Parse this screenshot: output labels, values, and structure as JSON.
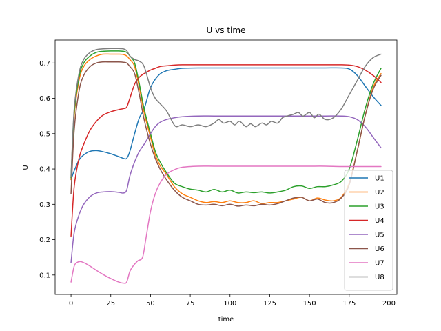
{
  "chart_data": {
    "type": "line",
    "title": "U vs time",
    "xlabel": "time",
    "ylabel": "U",
    "xlim": [
      -10,
      205
    ],
    "ylim": [
      0.045,
      0.765
    ],
    "xticks": [
      0,
      25,
      50,
      75,
      100,
      125,
      150,
      175,
      200
    ],
    "yticks": [
      0.1,
      0.2,
      0.3,
      0.4,
      0.5,
      0.6,
      0.7
    ],
    "grid": false,
    "legend_position": "lower-right",
    "series": [
      {
        "name": "U1",
        "color": "#1f77b4",
        "x": [
          0,
          2,
          5,
          8,
          12,
          16,
          20,
          25,
          30,
          33,
          35,
          37,
          40,
          43,
          46,
          50,
          55,
          60,
          65,
          70,
          80,
          90,
          100,
          110,
          120,
          130,
          140,
          150,
          160,
          170,
          175,
          180,
          185,
          190,
          195
        ],
        "y": [
          0.37,
          0.395,
          0.425,
          0.44,
          0.45,
          0.452,
          0.449,
          0.443,
          0.435,
          0.43,
          0.43,
          0.45,
          0.5,
          0.545,
          0.57,
          0.63,
          0.665,
          0.678,
          0.682,
          0.685,
          0.686,
          0.686,
          0.686,
          0.686,
          0.686,
          0.686,
          0.686,
          0.686,
          0.686,
          0.686,
          0.683,
          0.665,
          0.635,
          0.605,
          0.58
        ]
      },
      {
        "name": "U2",
        "color": "#ff7f0e",
        "x": [
          0,
          2,
          5,
          8,
          12,
          16,
          20,
          25,
          30,
          33,
          35,
          37,
          40,
          43,
          46,
          50,
          53,
          56,
          60,
          65,
          70,
          75,
          80,
          85,
          90,
          95,
          100,
          105,
          110,
          115,
          120,
          125,
          130,
          135,
          140,
          145,
          150,
          155,
          160,
          165,
          170,
          175,
          180,
          185,
          190,
          195
        ],
        "y": [
          0.37,
          0.55,
          0.65,
          0.69,
          0.71,
          0.72,
          0.725,
          0.725,
          0.725,
          0.724,
          0.72,
          0.71,
          0.69,
          0.63,
          0.56,
          0.49,
          0.44,
          0.41,
          0.385,
          0.35,
          0.33,
          0.32,
          0.31,
          0.305,
          0.308,
          0.305,
          0.31,
          0.305,
          0.305,
          0.31,
          0.302,
          0.305,
          0.305,
          0.31,
          0.315,
          0.32,
          0.31,
          0.318,
          0.312,
          0.31,
          0.32,
          0.36,
          0.45,
          0.55,
          0.63,
          0.67
        ]
      },
      {
        "name": "U3",
        "color": "#2ca02c",
        "x": [
          0,
          2,
          5,
          8,
          12,
          16,
          20,
          25,
          30,
          33,
          35,
          37,
          40,
          43,
          46,
          50,
          53,
          56,
          60,
          65,
          70,
          75,
          80,
          85,
          90,
          95,
          100,
          105,
          110,
          115,
          120,
          125,
          130,
          135,
          140,
          145,
          150,
          155,
          160,
          165,
          170,
          175,
          180,
          185,
          190,
          195
        ],
        "y": [
          0.375,
          0.56,
          0.66,
          0.7,
          0.72,
          0.73,
          0.733,
          0.734,
          0.734,
          0.733,
          0.73,
          0.72,
          0.7,
          0.64,
          0.57,
          0.5,
          0.45,
          0.42,
          0.39,
          0.36,
          0.35,
          0.343,
          0.34,
          0.335,
          0.342,
          0.335,
          0.34,
          0.332,
          0.335,
          0.333,
          0.335,
          0.332,
          0.335,
          0.34,
          0.35,
          0.352,
          0.345,
          0.35,
          0.35,
          0.355,
          0.365,
          0.4,
          0.48,
          0.57,
          0.64,
          0.685
        ]
      },
      {
        "name": "U4",
        "color": "#d62728",
        "x": [
          0,
          2,
          5,
          8,
          12,
          16,
          20,
          25,
          30,
          33,
          35,
          37,
          40,
          43,
          46,
          50,
          53,
          56,
          60,
          65,
          70,
          80,
          90,
          100,
          110,
          120,
          130,
          140,
          150,
          160,
          170,
          175,
          180,
          185,
          190,
          195
        ],
        "y": [
          0.21,
          0.35,
          0.43,
          0.47,
          0.51,
          0.535,
          0.552,
          0.562,
          0.568,
          0.571,
          0.575,
          0.6,
          0.64,
          0.66,
          0.67,
          0.68,
          0.685,
          0.69,
          0.692,
          0.694,
          0.695,
          0.695,
          0.695,
          0.695,
          0.695,
          0.695,
          0.695,
          0.695,
          0.695,
          0.695,
          0.695,
          0.694,
          0.69,
          0.68,
          0.665,
          0.645
        ]
      },
      {
        "name": "U5",
        "color": "#9467bd",
        "x": [
          0,
          2,
          5,
          8,
          12,
          16,
          20,
          25,
          30,
          33,
          35,
          37,
          40,
          43,
          46,
          50,
          53,
          56,
          60,
          65,
          70,
          80,
          90,
          100,
          110,
          120,
          130,
          140,
          150,
          160,
          170,
          175,
          180,
          185,
          190,
          195
        ],
        "y": [
          0.135,
          0.22,
          0.27,
          0.3,
          0.322,
          0.332,
          0.335,
          0.336,
          0.334,
          0.332,
          0.34,
          0.38,
          0.42,
          0.45,
          0.47,
          0.5,
          0.52,
          0.532,
          0.54,
          0.545,
          0.548,
          0.55,
          0.55,
          0.55,
          0.55,
          0.55,
          0.55,
          0.55,
          0.55,
          0.55,
          0.55,
          0.548,
          0.54,
          0.52,
          0.49,
          0.46
        ]
      },
      {
        "name": "U6",
        "color": "#8c564b",
        "x": [
          0,
          2,
          5,
          8,
          12,
          16,
          20,
          25,
          30,
          33,
          35,
          37,
          40,
          43,
          46,
          50,
          53,
          56,
          60,
          65,
          70,
          75,
          80,
          85,
          90,
          95,
          100,
          105,
          110,
          115,
          120,
          125,
          130,
          135,
          140,
          145,
          150,
          155,
          160,
          165,
          170,
          175,
          180,
          185,
          190,
          195
        ],
        "y": [
          0.33,
          0.51,
          0.62,
          0.665,
          0.69,
          0.7,
          0.703,
          0.703,
          0.703,
          0.702,
          0.7,
          0.69,
          0.67,
          0.61,
          0.54,
          0.47,
          0.43,
          0.4,
          0.37,
          0.34,
          0.32,
          0.31,
          0.3,
          0.298,
          0.3,
          0.296,
          0.3,
          0.295,
          0.298,
          0.296,
          0.3,
          0.298,
          0.302,
          0.31,
          0.318,
          0.32,
          0.31,
          0.315,
          0.305,
          0.305,
          0.318,
          0.355,
          0.45,
          0.55,
          0.625,
          0.665
        ]
      },
      {
        "name": "U7",
        "color": "#e377c2",
        "x": [
          0,
          2,
          4,
          6,
          8,
          12,
          16,
          20,
          25,
          30,
          33,
          35,
          37,
          39,
          42,
          45,
          47,
          50,
          53,
          56,
          60,
          65,
          70,
          80,
          90,
          100,
          110,
          120,
          130,
          140,
          150,
          160,
          170,
          180,
          190,
          195
        ],
        "y": [
          0.08,
          0.125,
          0.136,
          0.138,
          0.135,
          0.125,
          0.113,
          0.102,
          0.09,
          0.08,
          0.077,
          0.08,
          0.11,
          0.125,
          0.14,
          0.15,
          0.2,
          0.28,
          0.33,
          0.36,
          0.385,
          0.398,
          0.405,
          0.408,
          0.408,
          0.408,
          0.408,
          0.408,
          0.408,
          0.408,
          0.408,
          0.408,
          0.407,
          0.407,
          0.407,
          0.407
        ]
      },
      {
        "name": "U8",
        "color": "#7f7f7f",
        "x": [
          0,
          2,
          5,
          8,
          12,
          16,
          20,
          25,
          30,
          33,
          35,
          37,
          40,
          43,
          46,
          50,
          53,
          56,
          60,
          63,
          66,
          70,
          75,
          80,
          85,
          90,
          93,
          96,
          100,
          103,
          106,
          110,
          113,
          116,
          120,
          123,
          126,
          130,
          133,
          136,
          140,
          143,
          146,
          150,
          153,
          156,
          160,
          165,
          170,
          175,
          180,
          185,
          190,
          195
        ],
        "y": [
          0.38,
          0.57,
          0.67,
          0.71,
          0.73,
          0.738,
          0.74,
          0.741,
          0.741,
          0.74,
          0.735,
          0.72,
          0.71,
          0.705,
          0.69,
          0.63,
          0.6,
          0.585,
          0.565,
          0.54,
          0.52,
          0.525,
          0.52,
          0.525,
          0.52,
          0.53,
          0.54,
          0.53,
          0.535,
          0.525,
          0.535,
          0.52,
          0.528,
          0.52,
          0.53,
          0.525,
          0.535,
          0.53,
          0.545,
          0.55,
          0.555,
          0.56,
          0.55,
          0.56,
          0.545,
          0.555,
          0.54,
          0.545,
          0.57,
          0.61,
          0.65,
          0.69,
          0.715,
          0.725
        ]
      }
    ]
  }
}
